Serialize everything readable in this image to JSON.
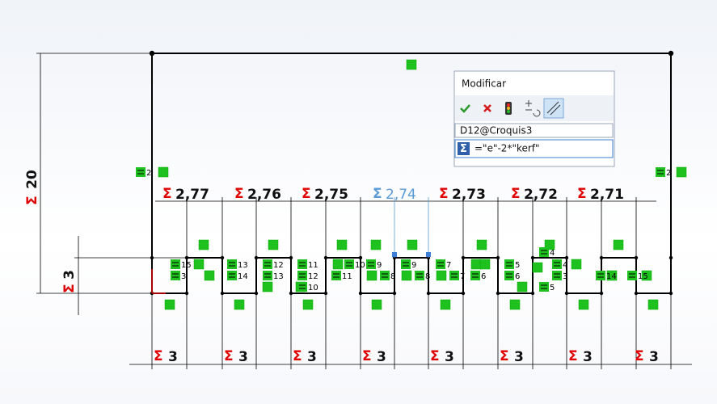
{
  "dialog": {
    "title": "Modificar",
    "dimension_name": "D12@Croquis3",
    "formula": "=\"e\"-2*\"kerf\""
  },
  "dimensions": {
    "sigma": "Σ",
    "height": "20",
    "tab_height": "3",
    "widths": [
      "2,77",
      "2,76",
      "2,75",
      "2,74",
      "2,73",
      "2,72",
      "2,71"
    ],
    "spacings": [
      "3",
      "3",
      "3",
      "3",
      "3",
      "3",
      "3",
      "3"
    ]
  },
  "relations": [
    "2",
    "2",
    "15",
    "3",
    "13",
    "14",
    "12",
    "13",
    "11",
    "12",
    "10",
    "11",
    "10",
    "9",
    "8",
    "9",
    "8",
    "7",
    "7",
    "6",
    "5",
    "6",
    "5",
    "4",
    "3",
    "4",
    "14",
    "15"
  ]
}
